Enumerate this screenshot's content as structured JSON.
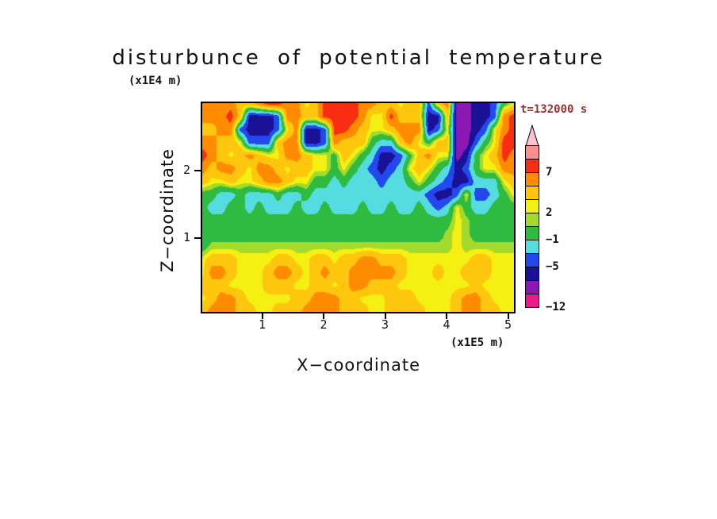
{
  "title": "disturbunce of potential temperature",
  "time_label": "t=132000 s",
  "time_color": "#993333",
  "axes": {
    "y_unit": "(x1E4 m)",
    "y_label": "Z−coordinate",
    "x_label": "X−coordinate",
    "x_unit": "(x1E5 m)",
    "x_tick_labels": [
      "1",
      "2",
      "3",
      "4",
      "5"
    ],
    "y_tick_labels": [
      "2",
      "1"
    ]
  },
  "colorbar": {
    "tick_labels": [
      "7",
      "2",
      "−1",
      "−5",
      "−12"
    ],
    "tick_after_segment": [
      2,
      5,
      7,
      9,
      12
    ]
  },
  "chart_data": {
    "type": "heatmap",
    "title": "disturbunce of potential temperature",
    "xlabel": "X−coordinate (x1E5 m)",
    "ylabel": "Z−coordinate (x1E4 m)",
    "time": "t=132000 s",
    "x_range": [
      0,
      5.1
    ],
    "z_range": [
      0,
      3.0
    ],
    "x_ticks": [
      1,
      2,
      3,
      4,
      5
    ],
    "z_ticks": [
      1,
      2
    ],
    "levels": [
      -12,
      -9,
      -7,
      -5,
      -3,
      -1,
      1,
      2,
      3,
      5,
      7,
      9,
      11
    ],
    "colors": [
      "#ea1a8c",
      "#8c18b4",
      "#1a1196",
      "#2348ee",
      "#55dce0",
      "#2fba40",
      "#a4da2c",
      "#f4f011",
      "#ffc60e",
      "#ff8c00",
      "#f92d11",
      "#fb8e8e",
      "#fcc3cf"
    ],
    "grid_order": "rows from top (z=3.0) to bottom (z=0), columns from left (x=0) to right (x=5.1); values are contour-level estimates",
    "values": [
      [
        6,
        6,
        6,
        6,
        4,
        4,
        6,
        8,
        8,
        6,
        6,
        2.5,
        4,
        8,
        8,
        8,
        8,
        6,
        6,
        4,
        4,
        2.5,
        4,
        4,
        -4,
        4,
        6,
        -8,
        -8,
        -6,
        -6,
        -4,
        0,
        2.5
      ],
      [
        6,
        6,
        6,
        8,
        4,
        -6,
        -6,
        -6,
        -4,
        6,
        6,
        4,
        4,
        8,
        8,
        8,
        8,
        6,
        2.5,
        2.5,
        8,
        4,
        4,
        4,
        -6,
        -6,
        4,
        -8,
        -8,
        -6,
        -6,
        -4,
        6,
        8
      ],
      [
        4,
        4,
        6,
        6,
        -4,
        -6,
        -6,
        -6,
        -4,
        2.5,
        6,
        -6,
        -6,
        -4,
        8,
        8,
        6,
        4,
        2.5,
        2.5,
        4,
        6,
        6,
        6,
        -6,
        -4,
        2.5,
        -8,
        -8,
        -6,
        -4,
        2.5,
        6,
        8
      ],
      [
        6,
        6,
        4,
        4,
        2.5,
        -4,
        -4,
        -4,
        4,
        6,
        6,
        -6,
        -6,
        -4,
        6,
        4,
        4,
        4,
        0,
        -2,
        -2,
        4,
        6,
        2.5,
        0,
        4,
        4,
        -8,
        -8,
        -4,
        0,
        2.5,
        8,
        8
      ],
      [
        8,
        6,
        4,
        2.5,
        4,
        6,
        4,
        2.5,
        2.5,
        6,
        6,
        4,
        2.5,
        2.5,
        0,
        4,
        2.5,
        0,
        -2,
        -6,
        -6,
        -4,
        0,
        4,
        6,
        2.5,
        2.5,
        -8,
        -6,
        0,
        2.5,
        4,
        8,
        6
      ],
      [
        6,
        4,
        6,
        6,
        4,
        2.5,
        6,
        6,
        4,
        2.5,
        4,
        4,
        2.5,
        2.5,
        0,
        2.5,
        0,
        -2,
        -4,
        -6,
        -4,
        -2,
        2.5,
        4,
        2.5,
        0,
        -2,
        -6,
        -4,
        0,
        2.5,
        2.5,
        6,
        6
      ],
      [
        4,
        2.5,
        2.5,
        4,
        2.5,
        2.5,
        4,
        6,
        6,
        4,
        2.5,
        2.5,
        0,
        0,
        -2,
        0,
        -2,
        -2,
        -2,
        -4,
        -2,
        -2,
        0,
        2.5,
        0,
        -2,
        -4,
        -6,
        -6,
        -2,
        -2,
        -2,
        2.5,
        4
      ],
      [
        0,
        0,
        -2,
        -2,
        0,
        -2,
        -2,
        -2,
        0,
        -2,
        -2,
        0,
        -2,
        -2,
        -2,
        -2,
        -2,
        -2,
        -2,
        -2,
        -2,
        -2,
        -2,
        -2,
        -4,
        -6,
        -6,
        -4,
        2.5,
        -4,
        -4,
        -2,
        0,
        2.5
      ],
      [
        0,
        -2,
        -2,
        0,
        0,
        -2,
        0,
        -2,
        -2,
        -2,
        0,
        -2,
        -2,
        0,
        -2,
        -2,
        -2,
        0,
        -2,
        -2,
        0,
        -2,
        -2,
        0,
        -2,
        -4,
        -2,
        2.5,
        0,
        -2,
        -2,
        0,
        0,
        0
      ],
      [
        0,
        0,
        0,
        0,
        0,
        0,
        0,
        0,
        0,
        0,
        0,
        0,
        0,
        0,
        0,
        0,
        0,
        0,
        0,
        0,
        0,
        0,
        0,
        0,
        0,
        0,
        0,
        2.5,
        1.5,
        0,
        0,
        0,
        0,
        0
      ],
      [
        0,
        0,
        0,
        0,
        0,
        0,
        0,
        0,
        0,
        0,
        0,
        0,
        0,
        0,
        0,
        0,
        0,
        0,
        0,
        0,
        0,
        0,
        0,
        0,
        0,
        0,
        1.5,
        2.5,
        1.5,
        0,
        0,
        0,
        0,
        0
      ],
      [
        0,
        1.5,
        1.5,
        1.5,
        1.5,
        1.5,
        1.5,
        1.5,
        1.5,
        1.5,
        1.5,
        1.5,
        1.5,
        1.5,
        1.5,
        1.5,
        1.5,
        1.5,
        1.5,
        1.5,
        1.5,
        1.5,
        1.5,
        1.5,
        1.5,
        1.5,
        1.5,
        2.5,
        1.5,
        1.5,
        1.5,
        1.5,
        1.5,
        1.5
      ],
      [
        2.5,
        4,
        4,
        4,
        2.5,
        2.5,
        2.5,
        2.5,
        4,
        4,
        2.5,
        2.5,
        4,
        4,
        2.5,
        4,
        4,
        6,
        6,
        4,
        4,
        4,
        2.5,
        2.5,
        2.5,
        2.5,
        2.5,
        2.5,
        2.5,
        4,
        4,
        2.5,
        2.5,
        2.5
      ],
      [
        2.5,
        6,
        6,
        4,
        2.5,
        2.5,
        2.5,
        4,
        6,
        6,
        4,
        2.5,
        4,
        6,
        4,
        4,
        6,
        6,
        6,
        6,
        6,
        4,
        2.5,
        2.5,
        2.5,
        4,
        2.5,
        2.5,
        4,
        4,
        4,
        2.5,
        2.5,
        2.5
      ],
      [
        4,
        4,
        4,
        2.5,
        2.5,
        2.5,
        2.5,
        4,
        4,
        4,
        2.5,
        2.5,
        4,
        4,
        2.5,
        4,
        6,
        6,
        4,
        4,
        4,
        2.5,
        2.5,
        2.5,
        2.5,
        2.5,
        2.5,
        2.5,
        2.5,
        4,
        2.5,
        2.5,
        2.5,
        2.5
      ],
      [
        2.5,
        4,
        6,
        6,
        4,
        2.5,
        2.5,
        2.5,
        2.5,
        2.5,
        4,
        4,
        6,
        6,
        6,
        4,
        4,
        2.5,
        2.5,
        2.5,
        4,
        4,
        4,
        2.5,
        2.5,
        2.5,
        2.5,
        4,
        6,
        6,
        4,
        2.5,
        2.5,
        2.5
      ],
      [
        4,
        6,
        6,
        6,
        4,
        4,
        2.5,
        2.5,
        4,
        4,
        4,
        6,
        6,
        6,
        6,
        4,
        4,
        4,
        2.5,
        2.5,
        4,
        4,
        4,
        4,
        2.5,
        2.5,
        2.5,
        4,
        6,
        6,
        4,
        4,
        2.5,
        2.5
      ]
    ]
  }
}
